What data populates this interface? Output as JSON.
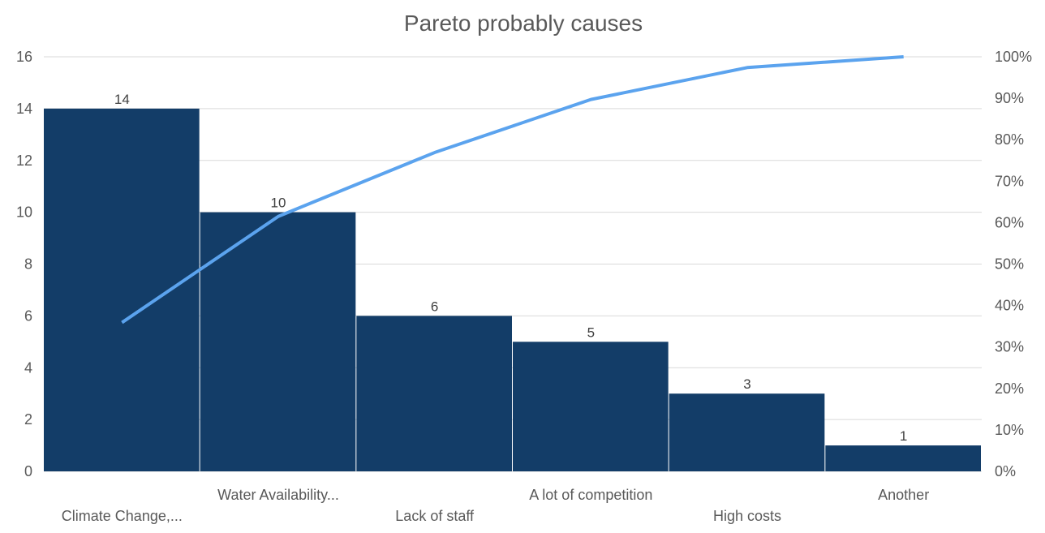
{
  "chart_data": {
    "type": "bar",
    "title": "Pareto probably causes",
    "categories": [
      "Climate Change,...",
      "Water Availability...",
      "Lack of staff",
      "A lot of competition",
      "High costs",
      "Another"
    ],
    "values": [
      14,
      10,
      6,
      5,
      3,
      1
    ],
    "cumulative_percent": [
      35.9,
      61.5,
      76.9,
      89.7,
      97.4,
      100
    ],
    "ylim": [
      0,
      16
    ],
    "y_ticks": [
      "0",
      "2",
      "4",
      "6",
      "8",
      "10",
      "12",
      "14",
      "16"
    ],
    "y2lim": [
      0,
      100
    ],
    "y2_ticks": [
      "0%",
      "10%",
      "20%",
      "30%",
      "40%",
      "50%",
      "60%",
      "70%",
      "80%",
      "90%",
      "100%"
    ],
    "data_labels": [
      "14",
      "10",
      "6",
      "5",
      "3",
      "1"
    ],
    "grid": true,
    "colors": {
      "bar": "#133D68",
      "line": "#5BA3EE",
      "grid": "#D9D9D9",
      "text": "#595959"
    }
  }
}
